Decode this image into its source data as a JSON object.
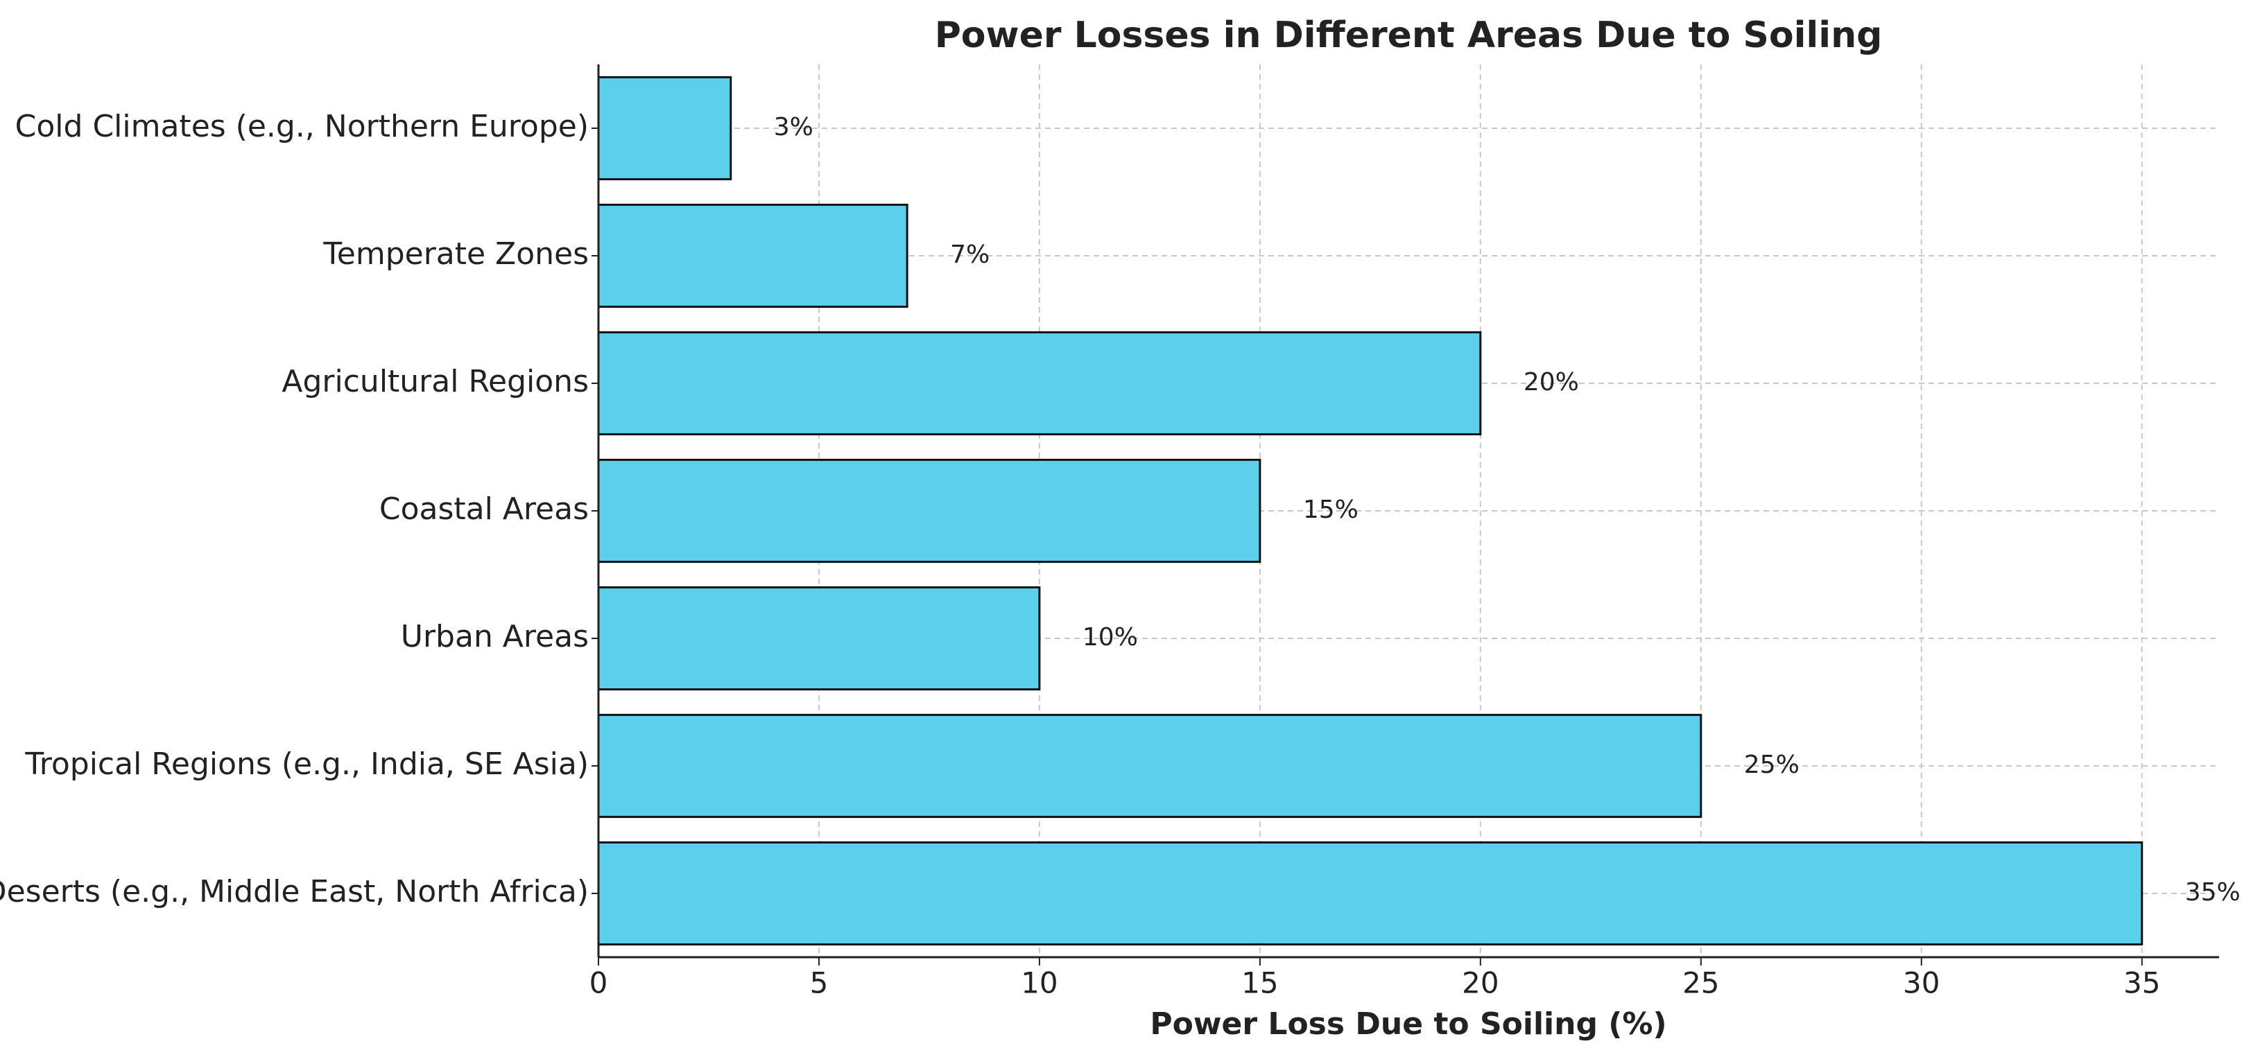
{
  "chart_data": {
    "type": "barh",
    "title": "Power Losses in Different Areas Due to Soiling",
    "x_label": "Power Loss Due to Soiling (%)",
    "categories": [
      "Cold Climates (e.g., Northern Europe)",
      "Temperate Zones",
      "Agricultural Regions",
      "Coastal Areas",
      "Urban Areas",
      "Tropical Regions (e.g., India, SE Asia)",
      "Deserts (e.g., Middle East, North Africa)"
    ],
    "values": [
      3,
      7,
      20,
      15,
      10,
      25,
      35
    ],
    "value_labels": [
      "3%",
      "7%",
      "20%",
      "15%",
      "10%",
      "25%",
      "35%"
    ],
    "color": "#5bcfec",
    "xlim": [
      0,
      36.75
    ],
    "xticks": [
      0,
      5,
      10,
      15,
      20,
      25,
      30,
      35
    ],
    "grid": true
  }
}
